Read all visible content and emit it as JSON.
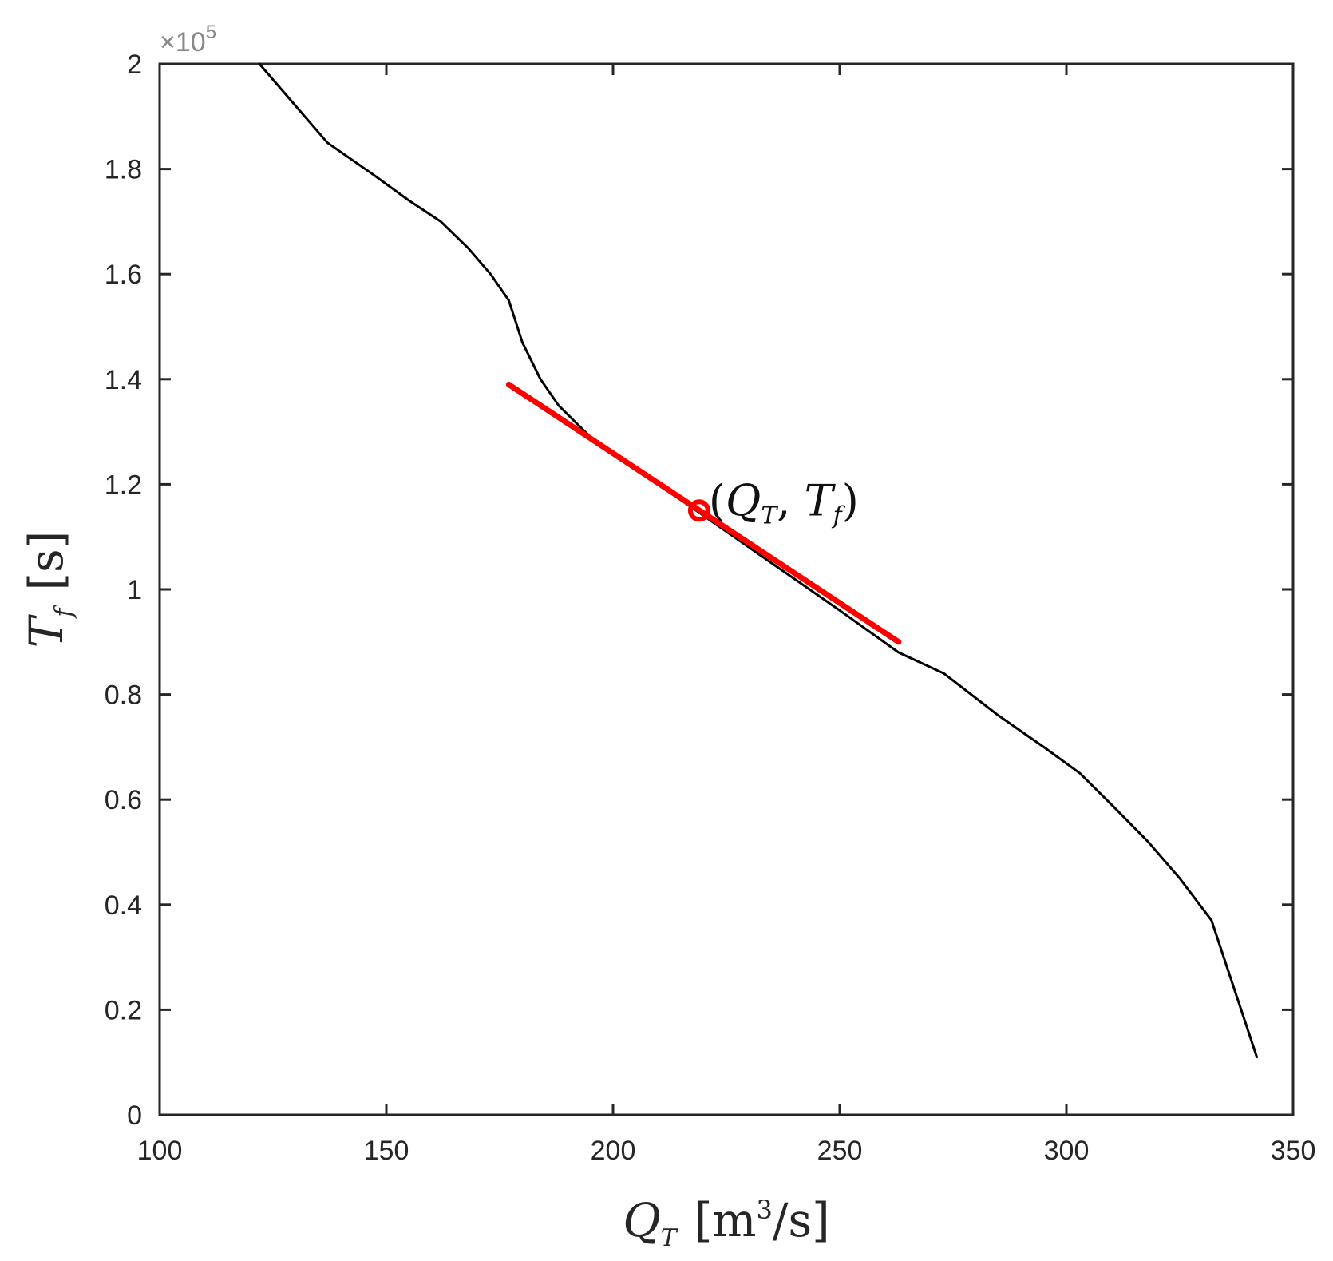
{
  "chart_data": {
    "type": "line",
    "exponent_label": "×10",
    "exponent_power": "5",
    "xlim": [
      100,
      350
    ],
    "ylim": [
      0,
      2
    ],
    "x_ticks": [
      100,
      150,
      200,
      250,
      300,
      350
    ],
    "x_tick_labels": [
      "100",
      "150",
      "200",
      "250",
      "300",
      "350"
    ],
    "y_ticks": [
      0,
      0.2,
      0.4,
      0.6,
      0.8,
      1,
      1.2,
      1.4,
      1.6,
      1.8,
      2
    ],
    "y_tick_labels": [
      "0",
      "0.2",
      "0.4",
      "0.6",
      "0.8",
      "1",
      "1.2",
      "1.4",
      "1.6",
      "1.8",
      "2"
    ],
    "xlabel": {
      "main": "Q",
      "sub": "T",
      "unit_open": "[m",
      "unit_sup": "3",
      "unit_close": "/s]"
    },
    "ylabel": {
      "main": "T",
      "sub": "f",
      "unit": "[s]"
    },
    "grid": false,
    "series": [
      {
        "color": "#000000",
        "x": [
          122,
          137,
          147,
          155,
          162,
          168,
          173,
          177,
          180,
          184,
          188,
          195,
          205,
          215,
          225,
          235,
          250,
          263,
          273,
          285,
          295,
          303,
          310,
          318,
          325,
          332,
          337,
          342
        ],
        "y": [
          2.0,
          1.85,
          1.79,
          1.74,
          1.7,
          1.65,
          1.6,
          1.55,
          1.47,
          1.4,
          1.35,
          1.29,
          1.23,
          1.17,
          1.11,
          1.05,
          0.96,
          0.88,
          0.84,
          0.76,
          0.7,
          0.65,
          0.59,
          0.52,
          0.45,
          0.37,
          0.24,
          0.11
        ]
      },
      {
        "color": "#ff0000",
        "x": [
          177,
          263
        ],
        "y": [
          1.39,
          0.9
        ]
      }
    ],
    "highlight_point": {
      "x": 219,
      "y": 1.15,
      "color": "#ff0000"
    },
    "annotation": {
      "open": "(",
      "q": "Q",
      "q_sub": "T",
      "comma": ", ",
      "t": "T",
      "t_sub": "f",
      "close": ")"
    }
  }
}
